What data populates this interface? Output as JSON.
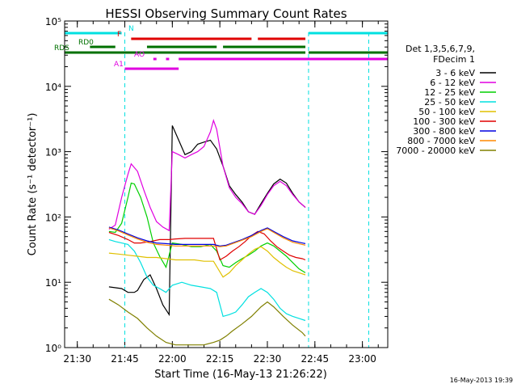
{
  "chart_data": {
    "type": "line",
    "title": "HESSI Observing Summary Count Rates",
    "xlabel": "Start Time (16-May-13 21:26:22)",
    "ylabel": "Count Rate (s⁻¹ detector⁻¹)",
    "y_scale": "log",
    "xlim": [
      "21:26",
      "23:08"
    ],
    "ylim": [
      1,
      100000
    ],
    "x_ticks": [
      "21:30",
      "21:45",
      "22:00",
      "22:15",
      "22:30",
      "22:45",
      "23:00"
    ],
    "y_ticks": [
      "10⁰",
      "10¹",
      "10²",
      "10³",
      "10⁴",
      "10⁵"
    ],
    "grid": false,
    "legend_position": "right",
    "legend_title": [
      "Det 1,3,5,6,7,9,",
      "FDecim 1"
    ],
    "series": [
      {
        "name": "3 - 6 keV",
        "color": "#000000",
        "points": [
          [
            "21:40",
            8.5
          ],
          [
            "21:44",
            8
          ],
          [
            "21:46",
            7
          ],
          [
            "21:48",
            7
          ],
          [
            "21:49",
            7.5
          ],
          [
            "21:51",
            11
          ],
          [
            "21:53",
            13
          ],
          [
            "21:55",
            8
          ],
          [
            "21:57",
            4.5
          ],
          [
            "21:59",
            3.2
          ],
          [
            "22:00",
            2500
          ],
          [
            "22:02",
            1500
          ],
          [
            "22:04",
            900
          ],
          [
            "22:06",
            1000
          ],
          [
            "22:08",
            1300
          ],
          [
            "22:10",
            1400
          ],
          [
            "22:12",
            1500
          ],
          [
            "22:14",
            1100
          ],
          [
            "22:16",
            600
          ],
          [
            "22:18",
            300
          ],
          [
            "22:20",
            220
          ],
          [
            "22:22",
            170
          ],
          [
            "22:24",
            120
          ],
          [
            "22:26",
            110
          ],
          [
            "22:28",
            160
          ],
          [
            "22:30",
            230
          ],
          [
            "22:32",
            320
          ],
          [
            "22:34",
            380
          ],
          [
            "22:36",
            330
          ],
          [
            "22:38",
            230
          ],
          [
            "22:40",
            170
          ],
          [
            "22:42",
            140
          ]
        ]
      },
      {
        "name": "6 - 12 keV",
        "color": "#e000e0",
        "points": [
          [
            "21:40",
            65
          ],
          [
            "21:42",
            75
          ],
          [
            "21:44",
            200
          ],
          [
            "21:46",
            450
          ],
          [
            "21:47",
            650
          ],
          [
            "21:49",
            500
          ],
          [
            "21:51",
            260
          ],
          [
            "21:53",
            140
          ],
          [
            "21:55",
            85
          ],
          [
            "21:57",
            70
          ],
          [
            "21:59",
            62
          ],
          [
            "22:00",
            1000
          ],
          [
            "22:02",
            900
          ],
          [
            "22:04",
            800
          ],
          [
            "22:06",
            900
          ],
          [
            "22:08",
            1000
          ],
          [
            "22:10",
            1200
          ],
          [
            "22:12",
            2000
          ],
          [
            "22:13",
            3000
          ],
          [
            "22:14",
            2200
          ],
          [
            "22:16",
            600
          ],
          [
            "22:18",
            280
          ],
          [
            "22:20",
            200
          ],
          [
            "22:22",
            160
          ],
          [
            "22:24",
            120
          ],
          [
            "22:26",
            110
          ],
          [
            "22:28",
            150
          ],
          [
            "22:30",
            220
          ],
          [
            "22:32",
            300
          ],
          [
            "22:34",
            350
          ],
          [
            "22:36",
            300
          ],
          [
            "22:38",
            220
          ],
          [
            "22:40",
            170
          ],
          [
            "22:42",
            140
          ]
        ]
      },
      {
        "name": "12 - 25 keV",
        "color": "#00d000",
        "points": [
          [
            "21:40",
            60
          ],
          [
            "21:42",
            58
          ],
          [
            "21:44",
            80
          ],
          [
            "21:46",
            200
          ],
          [
            "21:47",
            330
          ],
          [
            "21:48",
            320
          ],
          [
            "21:50",
            200
          ],
          [
            "21:52",
            100
          ],
          [
            "21:54",
            40
          ],
          [
            "21:56",
            25
          ],
          [
            "21:58",
            17
          ],
          [
            "22:00",
            40
          ],
          [
            "22:03",
            38
          ],
          [
            "22:06",
            35
          ],
          [
            "22:09",
            35
          ],
          [
            "22:12",
            38
          ],
          [
            "22:14",
            30
          ],
          [
            "22:16",
            18
          ],
          [
            "22:18",
            17
          ],
          [
            "22:20",
            20
          ],
          [
            "22:22",
            23
          ],
          [
            "22:24",
            26
          ],
          [
            "22:26",
            30
          ],
          [
            "22:28",
            36
          ],
          [
            "22:30",
            40
          ],
          [
            "22:32",
            36
          ],
          [
            "22:34",
            30
          ],
          [
            "22:36",
            25
          ],
          [
            "22:38",
            20
          ],
          [
            "22:40",
            16
          ],
          [
            "22:42",
            14
          ]
        ]
      },
      {
        "name": "25 - 50 keV",
        "color": "#00e0e0",
        "points": [
          [
            "21:40",
            45
          ],
          [
            "21:42",
            42
          ],
          [
            "21:44",
            40
          ],
          [
            "21:46",
            38
          ],
          [
            "21:48",
            30
          ],
          [
            "21:50",
            20
          ],
          [
            "21:52",
            12
          ],
          [
            "21:54",
            9
          ],
          [
            "21:56",
            8
          ],
          [
            "21:58",
            7
          ],
          [
            "22:00",
            9
          ],
          [
            "22:03",
            10
          ],
          [
            "22:06",
            9
          ],
          [
            "22:09",
            8.5
          ],
          [
            "22:12",
            8
          ],
          [
            "22:14",
            7
          ],
          [
            "22:16",
            3
          ],
          [
            "22:18",
            3.2
          ],
          [
            "22:20",
            3.5
          ],
          [
            "22:22",
            4.5
          ],
          [
            "22:24",
            6
          ],
          [
            "22:26",
            7
          ],
          [
            "22:28",
            8
          ],
          [
            "22:30",
            7
          ],
          [
            "22:32",
            5.5
          ],
          [
            "22:34",
            4
          ],
          [
            "22:36",
            3.3
          ],
          [
            "22:38",
            3
          ],
          [
            "22:40",
            2.8
          ],
          [
            "22:42",
            2.6
          ]
        ]
      },
      {
        "name": "50 - 100 keV",
        "color": "#e0c000",
        "points": [
          [
            "21:40",
            28
          ],
          [
            "21:43",
            27
          ],
          [
            "21:46",
            26
          ],
          [
            "21:49",
            25
          ],
          [
            "21:52",
            24
          ],
          [
            "21:55",
            24
          ],
          [
            "21:58",
            23
          ],
          [
            "22:01",
            22
          ],
          [
            "22:04",
            22
          ],
          [
            "22:07",
            22
          ],
          [
            "22:10",
            21
          ],
          [
            "22:13",
            21
          ],
          [
            "22:16",
            12
          ],
          [
            "22:18",
            14
          ],
          [
            "22:20",
            18
          ],
          [
            "22:22",
            22
          ],
          [
            "22:24",
            27
          ],
          [
            "22:26",
            32
          ],
          [
            "22:28",
            35
          ],
          [
            "22:30",
            30
          ],
          [
            "22:32",
            24
          ],
          [
            "22:34",
            20
          ],
          [
            "22:36",
            17
          ],
          [
            "22:38",
            15
          ],
          [
            "22:40",
            14
          ],
          [
            "22:42",
            13
          ]
        ]
      },
      {
        "name": "100 - 300 keV",
        "color": "#e00000",
        "points": [
          [
            "21:40",
            58
          ],
          [
            "21:43",
            52
          ],
          [
            "21:46",
            45
          ],
          [
            "21:48",
            40
          ],
          [
            "21:50",
            40
          ],
          [
            "21:53",
            42
          ],
          [
            "21:56",
            45
          ],
          [
            "21:59",
            45
          ],
          [
            "22:01",
            46
          ],
          [
            "22:04",
            47
          ],
          [
            "22:07",
            47
          ],
          [
            "22:10",
            47
          ],
          [
            "22:13",
            47
          ],
          [
            "22:15",
            22
          ],
          [
            "22:17",
            25
          ],
          [
            "22:19",
            30
          ],
          [
            "22:21",
            35
          ],
          [
            "22:23",
            42
          ],
          [
            "22:25",
            52
          ],
          [
            "22:27",
            60
          ],
          [
            "22:29",
            55
          ],
          [
            "22:31",
            43
          ],
          [
            "22:33",
            35
          ],
          [
            "22:35",
            30
          ],
          [
            "22:37",
            26
          ],
          [
            "22:39",
            24
          ],
          [
            "22:41",
            23
          ],
          [
            "22:42",
            22
          ]
        ]
      },
      {
        "name": "300 - 800 keV",
        "color": "#0000e0",
        "points": [
          [
            "21:40",
            70
          ],
          [
            "21:43",
            63
          ],
          [
            "21:46",
            55
          ],
          [
            "21:49",
            48
          ],
          [
            "21:52",
            43
          ],
          [
            "21:55",
            40
          ],
          [
            "21:58",
            39
          ],
          [
            "22:01",
            38
          ],
          [
            "22:04",
            38
          ],
          [
            "22:07",
            38
          ],
          [
            "22:10",
            38
          ],
          [
            "22:13",
            38
          ],
          [
            "22:15",
            36
          ],
          [
            "22:17",
            37
          ],
          [
            "22:19",
            40
          ],
          [
            "22:22",
            45
          ],
          [
            "22:25",
            52
          ],
          [
            "22:28",
            62
          ],
          [
            "22:30",
            68
          ],
          [
            "22:32",
            60
          ],
          [
            "22:35",
            50
          ],
          [
            "22:38",
            43
          ],
          [
            "22:41",
            40
          ],
          [
            "22:42",
            39
          ]
        ]
      },
      {
        "name": "800 - 7000 keV",
        "color": "#ff8800",
        "points": [
          [
            "21:40",
            68
          ],
          [
            "21:43",
            61
          ],
          [
            "21:46",
            53
          ],
          [
            "21:49",
            46
          ],
          [
            "21:52",
            41
          ],
          [
            "21:55",
            38
          ],
          [
            "21:58",
            37
          ],
          [
            "22:01",
            36
          ],
          [
            "22:04",
            36
          ],
          [
            "22:07",
            36
          ],
          [
            "22:10",
            36
          ],
          [
            "22:13",
            36
          ],
          [
            "22:15",
            35
          ],
          [
            "22:17",
            36
          ],
          [
            "22:19",
            39
          ],
          [
            "22:22",
            44
          ],
          [
            "22:25",
            50
          ],
          [
            "22:28",
            60
          ],
          [
            "22:30",
            66
          ],
          [
            "22:32",
            58
          ],
          [
            "22:35",
            48
          ],
          [
            "22:38",
            41
          ],
          [
            "22:41",
            38
          ],
          [
            "22:42",
            37
          ]
        ]
      },
      {
        "name": "7000 - 20000 keV",
        "color": "#808000",
        "points": [
          [
            "21:40",
            5.5
          ],
          [
            "21:43",
            4.5
          ],
          [
            "21:46",
            3.5
          ],
          [
            "21:49",
            2.8
          ],
          [
            "21:52",
            2
          ],
          [
            "21:55",
            1.5
          ],
          [
            "21:58",
            1.2
          ],
          [
            "22:01",
            1.1
          ],
          [
            "22:04",
            1.1
          ],
          [
            "22:07",
            1.1
          ],
          [
            "22:10",
            1.1
          ],
          [
            "22:13",
            1.2
          ],
          [
            "22:15",
            1.3
          ],
          [
            "22:17",
            1.5
          ],
          [
            "22:19",
            1.8
          ],
          [
            "22:22",
            2.3
          ],
          [
            "22:25",
            3
          ],
          [
            "22:28",
            4.2
          ],
          [
            "22:30",
            5
          ],
          [
            "22:32",
            4.2
          ],
          [
            "22:35",
            3
          ],
          [
            "22:38",
            2.2
          ],
          [
            "22:41",
            1.7
          ],
          [
            "22:42",
            1.5
          ]
        ]
      }
    ],
    "flag_bars": [
      {
        "label": "N",
        "color": "#00e0e0",
        "segments": [
          [
            "21:26",
            "21:44"
          ],
          [
            "22:43",
            "23:08"
          ]
        ]
      },
      {
        "label": "F",
        "color": "#e00000",
        "segments": [
          [
            "21:47",
            "22:25"
          ],
          [
            "22:27",
            "22:42"
          ]
        ]
      },
      {
        "label": "RD0",
        "color": "#007000",
        "segments": [
          [
            "21:34",
            "21:42"
          ],
          [
            "21:52",
            "22:14"
          ],
          [
            "22:16",
            "22:42"
          ]
        ]
      },
      {
        "label": "RDS",
        "color": "#007000",
        "segments": [
          [
            "21:26",
            "22:42"
          ],
          [
            "22:43",
            "23:08"
          ]
        ]
      },
      {
        "label": "AO",
        "color": "#e000e0",
        "segments": [
          [
            "21:54",
            "21:55"
          ],
          [
            "21:58",
            "21:59"
          ],
          [
            "22:02",
            "23:08"
          ]
        ]
      },
      {
        "label": "A1",
        "color": "#e000e0",
        "segments": [
          [
            "21:45",
            "22:02"
          ]
        ]
      }
    ],
    "saa_markers": [
      "21:26",
      "21:45",
      "22:43",
      "23:02"
    ],
    "timestamp": "16-May-2013 19:39"
  }
}
